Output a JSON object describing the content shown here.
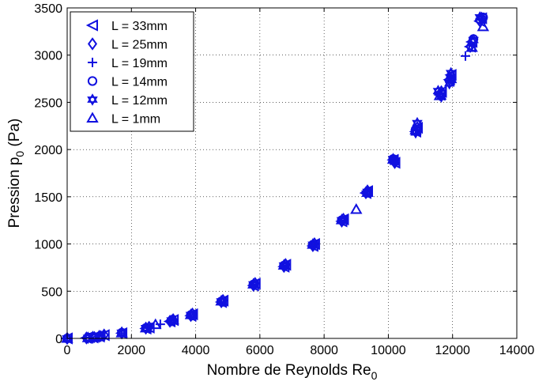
{
  "chart_data": {
    "type": "scatter",
    "xlim": [
      0,
      14000
    ],
    "ylim": [
      0,
      3500
    ],
    "xticks": [
      0,
      2000,
      4000,
      6000,
      8000,
      10000,
      12000,
      14000
    ],
    "yticks": [
      0,
      500,
      1000,
      1500,
      2000,
      2500,
      3000,
      3500
    ],
    "xlabel": {
      "text": "Nombre de Reynolds Re",
      "sub": "0"
    },
    "ylabel": {
      "text": "Pression p",
      "sub": "0",
      "suffix": " (Pa)"
    },
    "grid": true,
    "legend_position": "top-left",
    "marker_color": "#1010e0",
    "series": [
      {
        "name": "L = 33mm",
        "marker": "triangle-left",
        "points": [
          [
            0,
            0
          ],
          [
            600,
            5
          ],
          [
            800,
            10
          ],
          [
            1000,
            20
          ],
          [
            1150,
            35
          ],
          [
            1700,
            55
          ],
          [
            2450,
            105
          ],
          [
            2550,
            115
          ],
          [
            3200,
            180
          ],
          [
            3300,
            195
          ],
          [
            3850,
            240
          ],
          [
            3900,
            255
          ],
          [
            4800,
            385
          ],
          [
            4850,
            400
          ],
          [
            5800,
            560
          ],
          [
            5850,
            580
          ],
          [
            6750,
            760
          ],
          [
            6800,
            780
          ],
          [
            7650,
            980
          ],
          [
            7700,
            1000
          ],
          [
            8550,
            1240
          ],
          [
            8600,
            1260
          ],
          [
            9300,
            1540
          ],
          [
            9350,
            1560
          ],
          [
            10150,
            1890
          ],
          [
            10200,
            1860
          ],
          [
            10850,
            2190
          ],
          [
            10900,
            2230
          ],
          [
            11600,
            2580
          ],
          [
            11650,
            2610
          ],
          [
            11900,
            2740
          ],
          [
            11950,
            2790
          ],
          [
            12550,
            3090
          ],
          [
            12600,
            3140
          ],
          [
            12850,
            3360
          ],
          [
            12900,
            3390
          ]
        ]
      },
      {
        "name": "L = 25mm",
        "marker": "diamond",
        "points": [
          [
            0,
            0
          ],
          [
            600,
            5
          ],
          [
            800,
            12
          ],
          [
            1000,
            22
          ],
          [
            1150,
            36
          ],
          [
            1700,
            58
          ],
          [
            2450,
            108
          ],
          [
            2550,
            118
          ],
          [
            3200,
            182
          ],
          [
            3300,
            198
          ],
          [
            3850,
            242
          ],
          [
            3900,
            258
          ],
          [
            4800,
            388
          ],
          [
            4850,
            402
          ],
          [
            5800,
            562
          ],
          [
            5850,
            582
          ],
          [
            6750,
            762
          ],
          [
            6800,
            782
          ],
          [
            7650,
            982
          ],
          [
            7700,
            1002
          ],
          [
            8550,
            1242
          ],
          [
            8600,
            1262
          ],
          [
            9300,
            1542
          ],
          [
            9350,
            1562
          ],
          [
            10150,
            1892
          ],
          [
            10200,
            1862
          ],
          [
            10850,
            2192
          ],
          [
            10900,
            2232
          ],
          [
            11600,
            2582
          ],
          [
            11650,
            2612
          ],
          [
            11900,
            2742
          ],
          [
            11950,
            2792
          ],
          [
            12550,
            3092
          ],
          [
            12600,
            3142
          ],
          [
            12850,
            3362
          ],
          [
            12900,
            3392
          ]
        ]
      },
      {
        "name": "L = 19mm",
        "marker": "plus",
        "points": [
          [
            0,
            0
          ],
          [
            700,
            8
          ],
          [
            1000,
            20
          ],
          [
            1700,
            55
          ],
          [
            2500,
            110
          ],
          [
            2900,
            150
          ],
          [
            3250,
            190
          ],
          [
            3850,
            250
          ],
          [
            4800,
            390
          ],
          [
            5800,
            570
          ],
          [
            6750,
            770
          ],
          [
            7650,
            990
          ],
          [
            8550,
            1250
          ],
          [
            9350,
            1550
          ],
          [
            10150,
            1880
          ],
          [
            10850,
            2200
          ],
          [
            11600,
            2600
          ],
          [
            11950,
            2760
          ],
          [
            12400,
            2990
          ],
          [
            12600,
            3100
          ],
          [
            12900,
            3380
          ]
        ]
      },
      {
        "name": "L = 14mm",
        "marker": "circle",
        "points": [
          [
            0,
            0
          ],
          [
            650,
            6
          ],
          [
            850,
            14
          ],
          [
            1050,
            24
          ],
          [
            1700,
            60
          ],
          [
            2450,
            110
          ],
          [
            3250,
            190
          ],
          [
            3850,
            248
          ],
          [
            4800,
            392
          ],
          [
            5800,
            572
          ],
          [
            6750,
            772
          ],
          [
            7650,
            992
          ],
          [
            8550,
            1252
          ],
          [
            9350,
            1552
          ],
          [
            10150,
            1900
          ],
          [
            10850,
            2210
          ],
          [
            11650,
            2590
          ],
          [
            11950,
            2770
          ],
          [
            12650,
            3170
          ],
          [
            12950,
            3400
          ]
        ]
      },
      {
        "name": "L = 12mm",
        "marker": "hexagram",
        "points": [
          [
            0,
            0
          ],
          [
            650,
            6
          ],
          [
            850,
            14
          ],
          [
            1050,
            24
          ],
          [
            1700,
            60
          ],
          [
            2450,
            110
          ],
          [
            3250,
            190
          ],
          [
            3850,
            248
          ],
          [
            4800,
            392
          ],
          [
            5800,
            572
          ],
          [
            6750,
            772
          ],
          [
            7650,
            992
          ],
          [
            8550,
            1252
          ],
          [
            9350,
            1552
          ],
          [
            10150,
            1900
          ],
          [
            10200,
            1870
          ],
          [
            10850,
            2180
          ],
          [
            10900,
            2280
          ],
          [
            11550,
            2620
          ],
          [
            11650,
            2560
          ],
          [
            11900,
            2700
          ],
          [
            11950,
            2810
          ],
          [
            12650,
            3160
          ],
          [
            12850,
            3400
          ]
        ]
      },
      {
        "name": "L =  1mm",
        "marker": "triangle-up",
        "points": [
          [
            0,
            0
          ],
          [
            650,
            6
          ],
          [
            1000,
            22
          ],
          [
            1700,
            58
          ],
          [
            2450,
            110
          ],
          [
            2750,
            145
          ],
          [
            3300,
            195
          ],
          [
            3850,
            250
          ],
          [
            4800,
            395
          ],
          [
            5800,
            575
          ],
          [
            6750,
            775
          ],
          [
            7650,
            995
          ],
          [
            8550,
            1255
          ],
          [
            9000,
            1365
          ],
          [
            9350,
            1545
          ],
          [
            10150,
            1895
          ],
          [
            10850,
            2205
          ],
          [
            11600,
            2570
          ],
          [
            11950,
            2750
          ],
          [
            12600,
            3080
          ],
          [
            12950,
            3300
          ]
        ]
      }
    ]
  }
}
